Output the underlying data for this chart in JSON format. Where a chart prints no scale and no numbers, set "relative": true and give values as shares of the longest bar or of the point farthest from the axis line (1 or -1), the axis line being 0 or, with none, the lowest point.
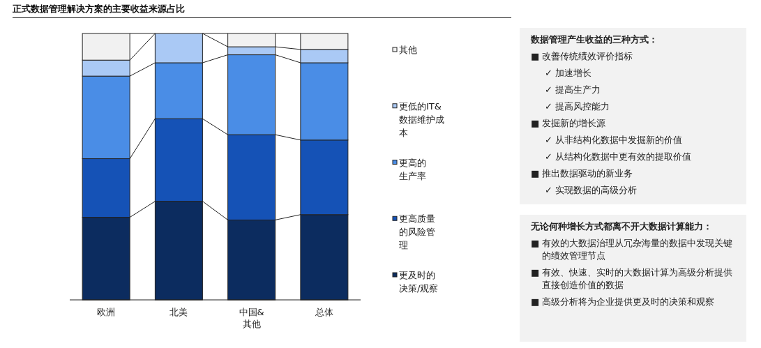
{
  "chart_data": [
    {
      "type": "bar",
      "title": "正式数据管理解决方案的主要收益来源占比",
      "stacked": true,
      "relative": true,
      "legend": "right",
      "categories": [
        "欧洲",
        "北美",
        "中国&其他",
        "总体"
      ],
      "series": [
        {
          "name": "更及时的决策/观察",
          "color": "#0c2c5f",
          "values": [
            0.31,
            0.37,
            0.3,
            0.32
          ]
        },
        {
          "name": "更高质量的风险管理",
          "color": "#1552b6",
          "values": [
            0.22,
            0.31,
            0.32,
            0.28
          ]
        },
        {
          "name": "更高的生产率",
          "color": "#4a8de6",
          "values": [
            0.31,
            0.21,
            0.3,
            0.29
          ]
        },
        {
          "name": "更低的IT&数据维护成本",
          "color": "#aac9f5",
          "values": [
            0.06,
            0.11,
            0.03,
            0.05
          ]
        },
        {
          "name": "其他",
          "color": "#f1f1f1",
          "values": [
            0.1,
            0,
            0.05,
            0.06
          ]
        }
      ]
    },
    {
      "type": "other",
      "title": "数据管理产生收益的三种方式：",
      "annotations": [
        "■ 改善传统绩效评价指标",
        "✓ 加速增长",
        "✓ 提高生产力",
        "✓ 提高风控能力",
        "■ 发掘新的增长源",
        "✓ 从非结构化数据中发掘新的价值",
        "✓ 从结构化数据中更有效的提取价值",
        "■ 推出数据驱动的新业务",
        "✓ 实现数据的高级分析"
      ]
    },
    {
      "type": "other",
      "title": "无论何种增长方式都离不开大数据计算能力：",
      "annotations": [
        "■ 有效的大数据治理从冗杂海量的数据中发现关键的绩效管理节点",
        "■ 有效、快速、实时的大数据计算为高级分析提供直接创造价值的数据",
        "■ 高级分析将为企业提供更及时的决策和观察"
      ]
    }
  ]
}
